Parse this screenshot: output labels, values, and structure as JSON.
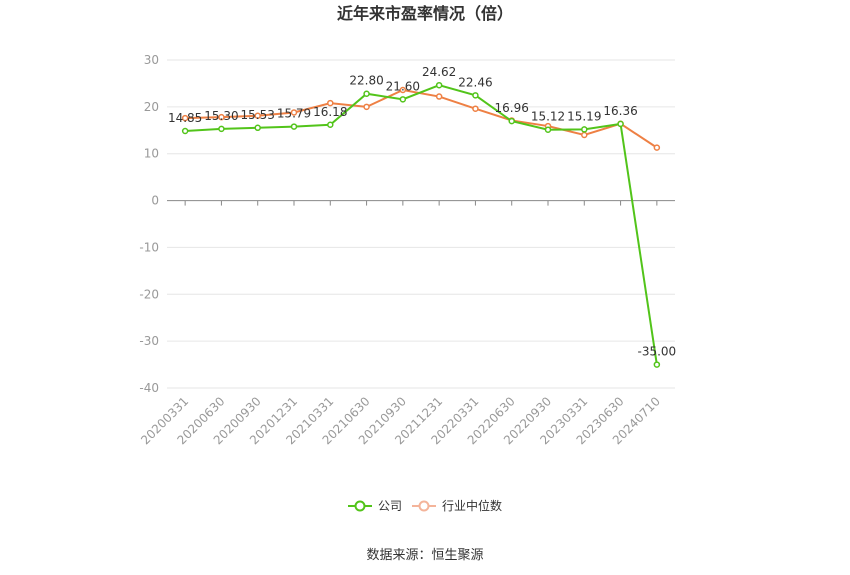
{
  "chart_data": {
    "type": "line",
    "title": "近年来市盈率情况（倍）",
    "categories": [
      "20200331",
      "20200630",
      "20200930",
      "20201231",
      "20210331",
      "20210630",
      "20210930",
      "20211231",
      "20220331",
      "20220630",
      "20220930",
      "20230331",
      "20230630",
      "20240710"
    ],
    "series": [
      {
        "name": "公司",
        "color": "#52c41a",
        "values": [
          14.85,
          15.3,
          15.53,
          15.79,
          16.18,
          22.8,
          21.6,
          24.62,
          22.46,
          16.96,
          15.12,
          15.19,
          16.36,
          -35.0
        ],
        "labels": [
          "14.85",
          "15.30",
          "15.53",
          "15.79",
          "16.18",
          "22.80",
          "21.60",
          "24.62",
          "22.46",
          "16.96",
          "15.12",
          "15.19",
          "16.36",
          "-35.00"
        ]
      },
      {
        "name": "行业中位数",
        "color": "#ee8044",
        "values": [
          17.6,
          17.8,
          18.1,
          18.8,
          20.8,
          20.0,
          23.6,
          22.2,
          19.6,
          17.1,
          15.9,
          14.0,
          16.4,
          11.3
        ]
      }
    ],
    "yticks": [
      "30",
      "20",
      "10",
      "0",
      "-10",
      "-20",
      "-30",
      "-40"
    ],
    "ylim": [
      -40,
      30
    ],
    "grid": true,
    "legend_position": "bottom-center"
  },
  "source": "数据来源：恒生聚源"
}
